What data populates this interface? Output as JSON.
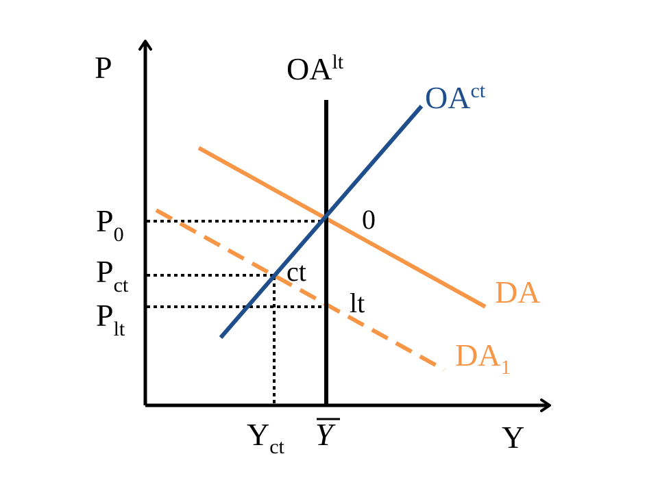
{
  "colors": {
    "axis": "#000000",
    "oa_short": "#1f4e8c",
    "demand": "#f79646",
    "guides": "#000000"
  },
  "axes": {
    "y_label": "P",
    "x_label": "Y"
  },
  "curves": {
    "oa_long": {
      "base": "OA",
      "sup": "lt"
    },
    "oa_short": {
      "base": "OA",
      "sup": "ct"
    },
    "da": {
      "label": "DA"
    },
    "da1": {
      "base": "DA",
      "sub": "1"
    }
  },
  "price_labels": {
    "p0": {
      "base": "P",
      "sub": "0"
    },
    "pct": {
      "base": "P",
      "sub": "ct"
    },
    "plt": {
      "base": "P",
      "sub": "lt"
    }
  },
  "output_labels": {
    "yct": {
      "base": "Y",
      "sub": "ct"
    },
    "ybar": {
      "base": "Y"
    }
  },
  "points": {
    "zero": "0",
    "ct": "ct",
    "lt": "lt"
  }
}
